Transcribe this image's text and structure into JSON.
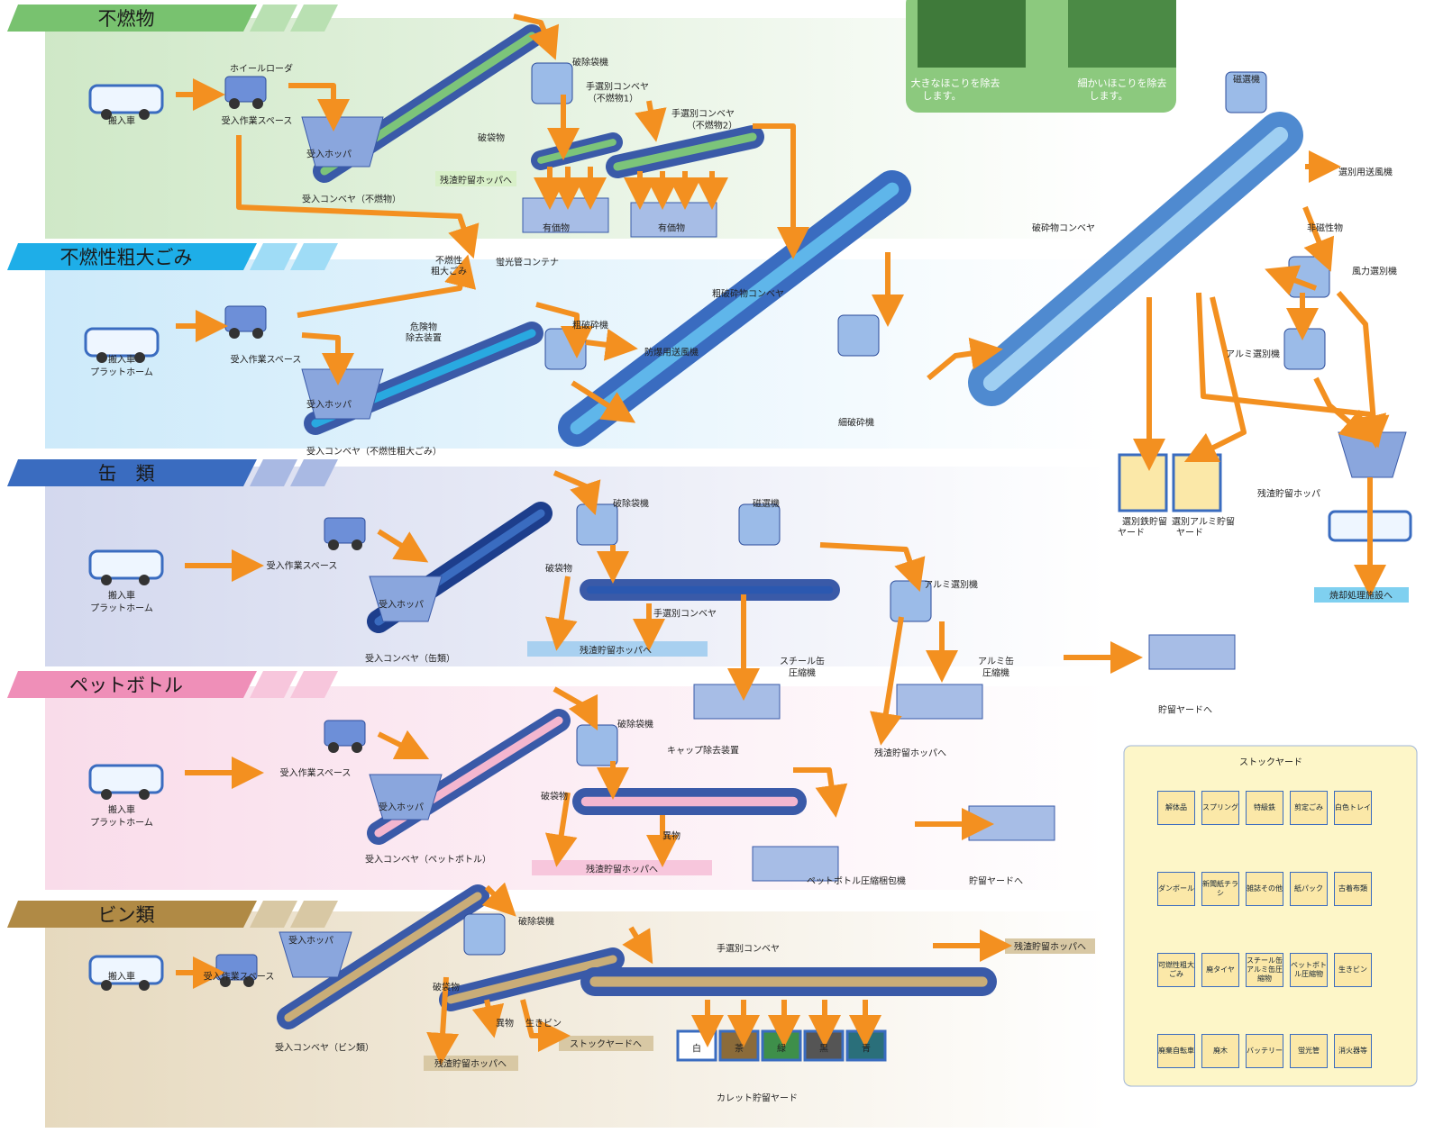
{
  "sections": [
    {
      "title": "不燃物",
      "labels": [
        "搬入車",
        "ホイールローダ",
        "受入作業スペース",
        "受入ホッパ",
        "受入コンベヤ（不燃物）",
        "破除袋機",
        "手選別コンベヤ",
        "（不燃物1）",
        "手選別コンベヤ",
        "（不燃物2）",
        "破袋物",
        "残渣貯留ホッパへ",
        "有価物",
        "有価物"
      ]
    },
    {
      "title": "不燃性粗大ごみ",
      "labels": [
        "搬入車",
        "プラットホーム",
        "受入作業スペース",
        "不燃性",
        "粗大ごみ",
        "蛍光管コンテナ",
        "危険物",
        "除去装置",
        "受入ホッパ",
        "受入コンベヤ（不燃性粗大ごみ）",
        "粗破砕機",
        "防爆用送風機",
        "粗破砕物コンベヤ",
        "細破砕機"
      ]
    },
    {
      "title": "缶　類",
      "labels": [
        "搬入車",
        "プラットホーム",
        "受入作業スペース",
        "受入ホッパ",
        "受入コンベヤ（缶類）",
        "破除袋機",
        "磁選機",
        "破袋物",
        "手選別コンベヤ",
        "残渣貯留ホッパへ",
        "アルミ選別機",
        "スチール缶",
        "圧縮機",
        "アルミ缶",
        "圧縮機",
        "貯留ヤードへ",
        "残渣貯留ホッパへ"
      ]
    },
    {
      "title": "ペットボトル",
      "labels": [
        "搬入車",
        "プラットホーム",
        "受入作業スペース",
        "受入ホッパ",
        "受入コンベヤ（ペットボトル）",
        "破除袋機",
        "キャップ除去装置",
        "破袋物",
        "異物",
        "残渣貯留ホッパへ",
        "ペットボトル圧縮梱包機",
        "貯留ヤードへ"
      ]
    },
    {
      "title": "ビン類",
      "labels": [
        "搬入車",
        "受入作業スペース",
        "受入ホッパ",
        "受入コンベヤ（ビン類）",
        "破除袋機",
        "破袋物",
        "異物",
        "生きビン",
        "ストックヤードへ",
        "手選別コンベヤ",
        "残渣貯留ホッパへ",
        "残渣貯留ホッパへ",
        "白",
        "茶",
        "緑",
        "黒",
        "青",
        "カレット貯留ヤード"
      ]
    }
  ],
  "dust_notes": [
    "大きなほこりを除去",
    "します。",
    "細かいほこりを除去",
    "します。"
  ],
  "separation": {
    "labels": [
      "磁選機",
      "選別用送風機",
      "破砕物コンベヤ",
      "非磁性物",
      "風力選別機",
      "アルミ選別機",
      "選別鉄貯留",
      "ヤード",
      "選別アルミ貯留",
      "ヤード",
      "残渣貯留ホッパ",
      "焼却処理施設へ"
    ]
  },
  "stock_yard": {
    "title": "ストックヤード",
    "items": [
      "解体品",
      "スプリング",
      "特級鉄",
      "剪定ごみ",
      "白色トレイ",
      "ダンボール",
      "新聞紙チラシ",
      "雑誌その他",
      "紙パック",
      "古着布類",
      "可燃性粗大ごみ",
      "廃タイヤ",
      "スチール缶アルミ缶圧縮物",
      "ペットボトル圧縮物",
      "生きビン",
      "廃棄自転車",
      "廃木",
      "バッテリー",
      "蛍光管",
      "消火器等"
    ]
  }
}
